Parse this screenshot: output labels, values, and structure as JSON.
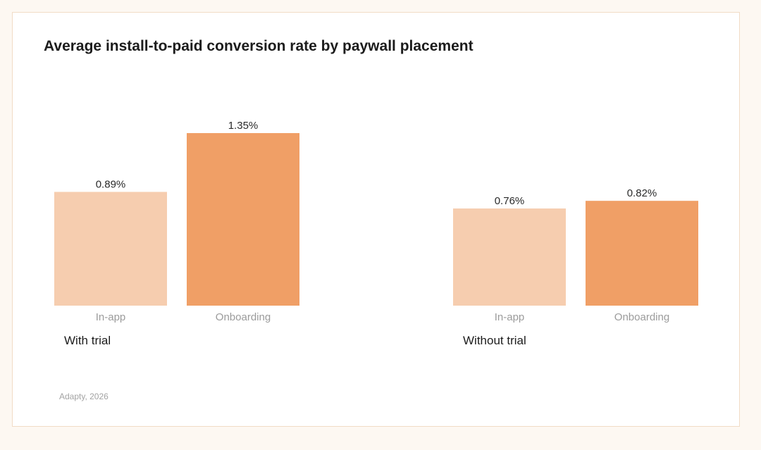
{
  "chart_data": {
    "type": "bar",
    "title": "Average install-to-paid conversion rate by paywall placement",
    "unit": "%",
    "groups": [
      {
        "name": "With trial",
        "bars": [
          {
            "category": "In-app",
            "value": 0.89,
            "label": "0.89%"
          },
          {
            "category": "Onboarding",
            "value": 1.35,
            "label": "1.35%"
          }
        ]
      },
      {
        "name": "Without trial",
        "bars": [
          {
            "category": "In-app",
            "value": 0.76,
            "label": "0.76%"
          },
          {
            "category": "Onboarding",
            "value": 0.82,
            "label": "0.82%"
          }
        ]
      }
    ],
    "colors": {
      "In-app": "#f6cdaf",
      "Onboarding": "#f09f66"
    },
    "ylim": [
      0,
      1.35
    ],
    "grid": false,
    "legend": "none"
  },
  "source": "Adapty, 2026"
}
